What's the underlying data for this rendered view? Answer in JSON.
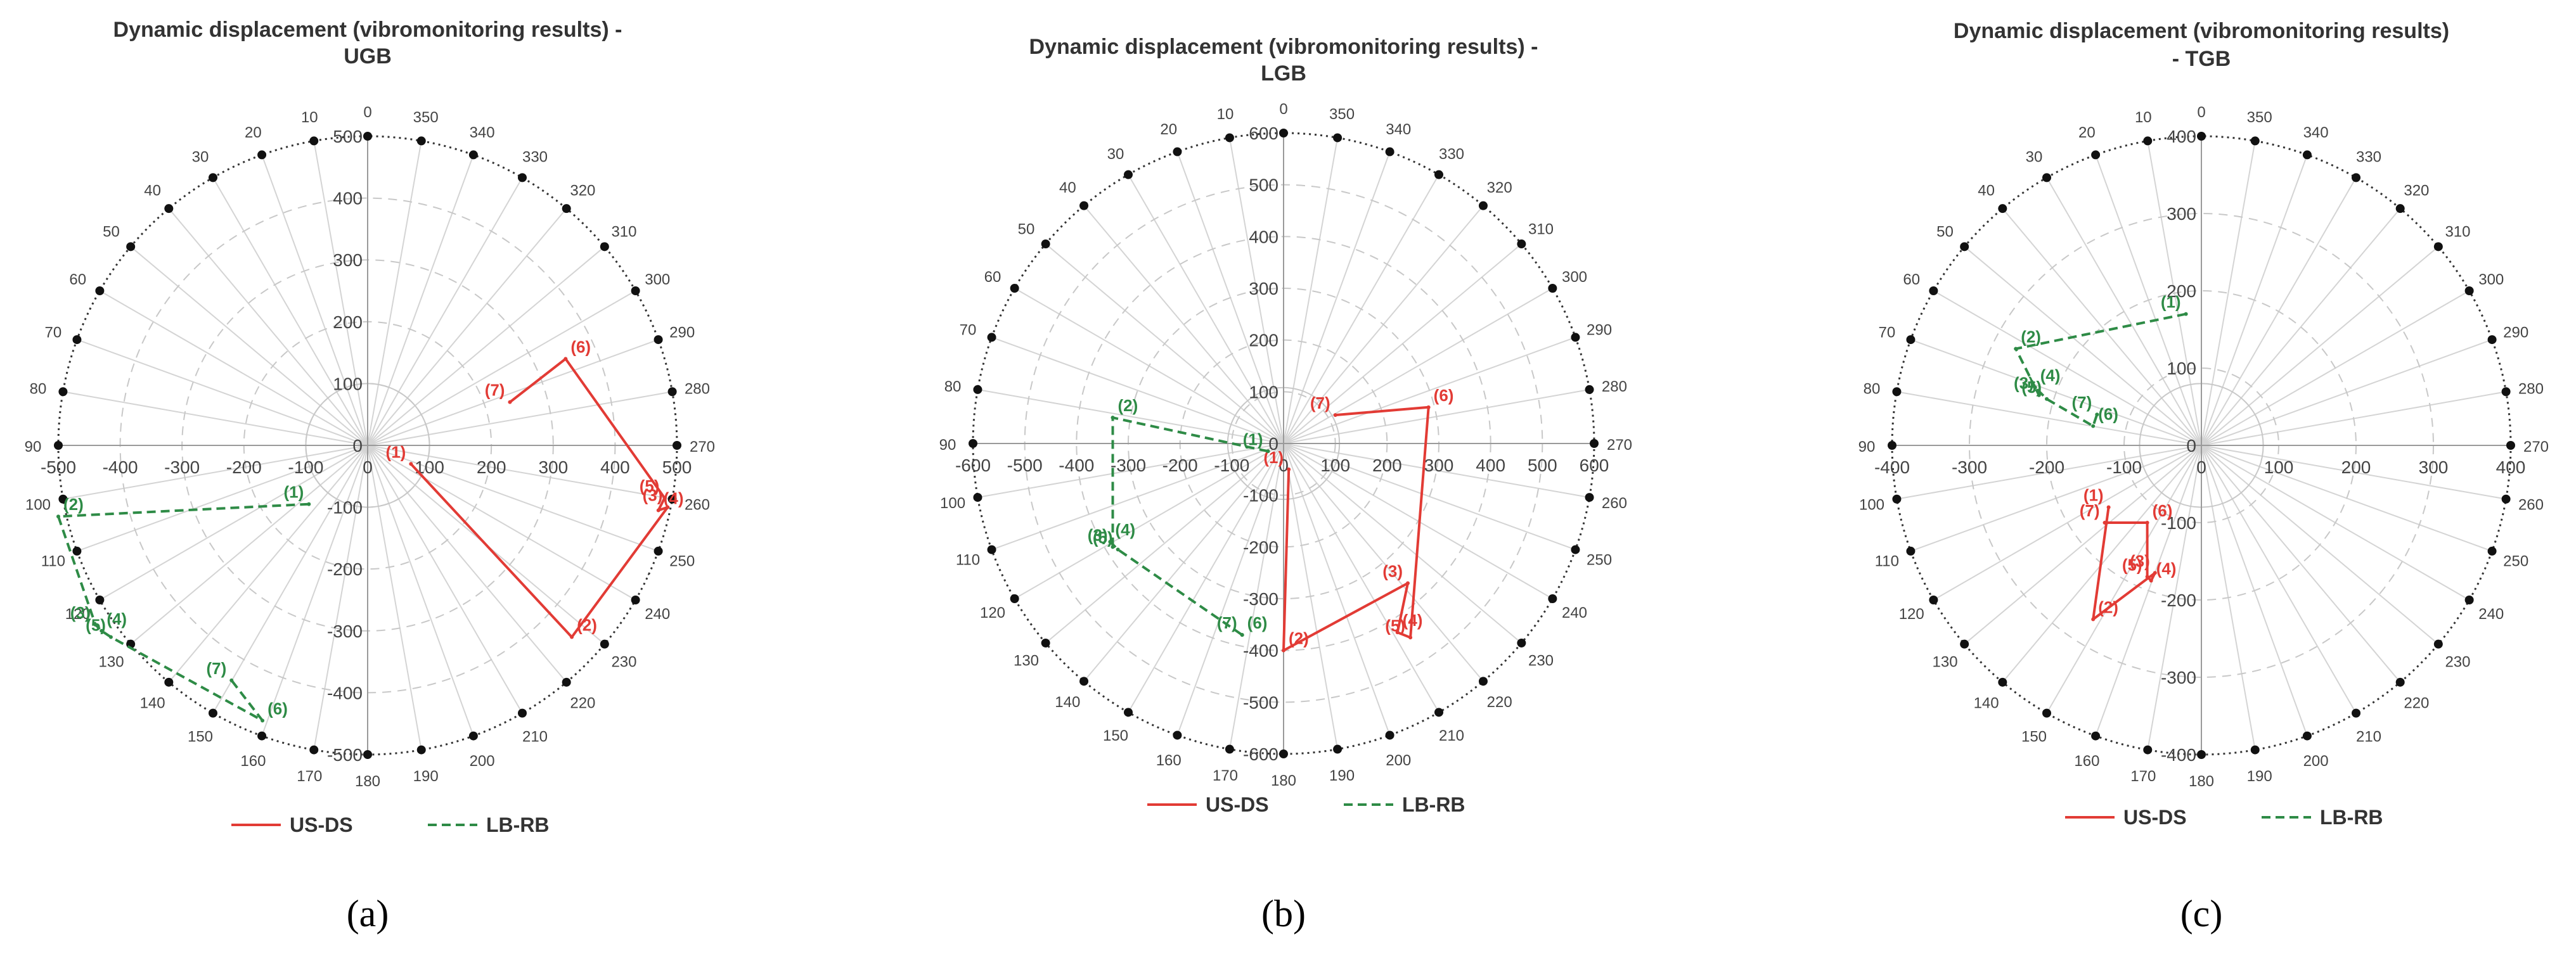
{
  "chart_data": [
    {
      "type": "polar-line",
      "title": "Dynamic displacement (vibromonitoring results) -",
      "subtitle": "UGB",
      "caption": "(a)",
      "radial_ticks": [
        "-500",
        "-400",
        "-300",
        "-200",
        "-100",
        "0",
        "100",
        "200",
        "300",
        "400",
        "500"
      ],
      "radial_max": 500,
      "radial_axis_labels": [
        "500",
        "400",
        "300",
        "200",
        "100",
        "0",
        "-100",
        "-200",
        "-300",
        "-400",
        "-500"
      ],
      "angle_labels": [
        "0",
        "10",
        "20",
        "30",
        "40",
        "50",
        "60",
        "70",
        "80",
        "90",
        "100",
        "110",
        "120",
        "130",
        "140",
        "150",
        "160",
        "170",
        "180",
        "190",
        "200",
        "210",
        "220",
        "230",
        "240",
        "250",
        "260",
        "270",
        "280",
        "290",
        "300",
        "310",
        "320",
        "330",
        "340",
        "350"
      ],
      "series": [
        {
          "name": "US-DS",
          "color": "#e23b35",
          "dashed": false,
          "points": [
            {
              "x": 70,
              "y": -30,
              "label": "(1)"
            },
            {
              "x": 330,
              "y": -310,
              "label": "(2)"
            },
            {
              "x": 485,
              "y": -100,
              "label": "(3)"
            },
            {
              "x": 470,
              "y": -105,
              "label": "(4)"
            },
            {
              "x": 480,
              "y": -85,
              "label": "(5)"
            },
            {
              "x": 320,
              "y": 140,
              "label": "(6)"
            },
            {
              "x": 230,
              "y": 70,
              "label": "(7)"
            }
          ]
        },
        {
          "name": "LB-RB",
          "color": "#2e8b46",
          "dashed": true,
          "points": [
            {
              "x": -95,
              "y": -95,
              "label": "(1)"
            },
            {
              "x": -500,
              "y": -115,
              "label": "(2)"
            },
            {
              "x": -440,
              "y": -290,
              "label": "(3)"
            },
            {
              "x": -430,
              "y": -300,
              "label": "(4)"
            },
            {
              "x": -415,
              "y": -310,
              "label": "(5)"
            },
            {
              "x": -170,
              "y": -445,
              "label": "(6)"
            },
            {
              "x": -220,
              "y": -380,
              "label": "(7)"
            }
          ]
        }
      ]
    },
    {
      "type": "polar-line",
      "title": "Dynamic displacement (vibromonitoring results) -",
      "subtitle": "LGB",
      "caption": "(b)",
      "radial_ticks": [
        "-600",
        "-500",
        "-400",
        "-300",
        "-200",
        "-100",
        "0",
        "100",
        "200",
        "300",
        "400",
        "500",
        "600"
      ],
      "radial_max": 600,
      "radial_axis_labels": [
        "600",
        "500",
        "400",
        "300",
        "200",
        "100",
        "0",
        "-100",
        "-200",
        "-300",
        "-400",
        "-500",
        "-600"
      ],
      "angle_labels": [
        "0",
        "10",
        "20",
        "30",
        "40",
        "50",
        "60",
        "70",
        "80",
        "90",
        "100",
        "110",
        "120",
        "130",
        "140",
        "150",
        "160",
        "170",
        "180",
        "190",
        "200",
        "210",
        "220",
        "230",
        "240",
        "250",
        "260",
        "270",
        "280",
        "290",
        "300",
        "310",
        "320",
        "330",
        "340",
        "350"
      ],
      "series": [
        {
          "name": "US-DS",
          "color": "#e23b35",
          "dashed": false,
          "points": [
            {
              "x": 10,
              "y": -50,
              "label": "(1)"
            },
            {
              "x": 0,
              "y": -400,
              "label": "(2)"
            },
            {
              "x": 240,
              "y": -270,
              "label": "(3)"
            },
            {
              "x": 220,
              "y": -365,
              "label": "(4)"
            },
            {
              "x": 245,
              "y": -375,
              "label": "(5)"
            },
            {
              "x": 280,
              "y": 70,
              "label": "(6)"
            },
            {
              "x": 100,
              "y": 55,
              "label": "(7)"
            }
          ]
        },
        {
          "name": "LB-RB",
          "color": "#2e8b46",
          "dashed": true,
          "points": [
            {
              "x": -30,
              "y": -15,
              "label": "(1)"
            },
            {
              "x": -330,
              "y": 50,
              "label": "(2)"
            },
            {
              "x": -330,
              "y": -200,
              "label": "(3)"
            },
            {
              "x": -335,
              "y": -190,
              "label": "(4)"
            },
            {
              "x": -320,
              "y": -205,
              "label": "(5)"
            },
            {
              "x": -80,
              "y": -370,
              "label": "(6)"
            },
            {
              "x": -80,
              "y": -370,
              "label": "(7)"
            }
          ]
        }
      ]
    },
    {
      "type": "polar-line",
      "title": "Dynamic displacement (vibromonitoring results)",
      "subtitle": "-  TGB",
      "caption": "(c)",
      "radial_ticks": [
        "-400",
        "-300",
        "-200",
        "-100",
        "0",
        "100",
        "200",
        "300",
        "400"
      ],
      "radial_max": 400,
      "radial_axis_labels": [
        "400",
        "300",
        "200",
        "100",
        "0",
        "-100",
        "-200",
        "-300",
        "-400"
      ],
      "angle_labels": [
        "0",
        "10",
        "20",
        "30",
        "40",
        "50",
        "60",
        "70",
        "80",
        "90",
        "100",
        "110",
        "120",
        "130",
        "140",
        "150",
        "160",
        "170",
        "180",
        "190",
        "200",
        "210",
        "220",
        "230",
        "240",
        "250",
        "260",
        "270",
        "280",
        "290",
        "300",
        "310",
        "320",
        "330",
        "340",
        "350"
      ],
      "series": [
        {
          "name": "US-DS",
          "color": "#e23b35",
          "dashed": false,
          "points": [
            {
              "x": -120,
              "y": -80,
              "label": "(1)"
            },
            {
              "x": -140,
              "y": -225,
              "label": "(2)"
            },
            {
              "x": -60,
              "y": -165,
              "label": "(3)"
            },
            {
              "x": -65,
              "y": -175,
              "label": "(4)"
            },
            {
              "x": -70,
              "y": -170,
              "label": "(5)"
            },
            {
              "x": -70,
              "y": -100,
              "label": "(6)"
            },
            {
              "x": -125,
              "y": -100,
              "label": "(7)"
            }
          ]
        },
        {
          "name": "LB-RB",
          "color": "#2e8b46",
          "dashed": true,
          "points": [
            {
              "x": -20,
              "y": 170,
              "label": "(1)"
            },
            {
              "x": -240,
              "y": 125,
              "label": "(2)"
            },
            {
              "x": -210,
              "y": 65,
              "label": "(3)"
            },
            {
              "x": -215,
              "y": 75,
              "label": "(4)"
            },
            {
              "x": -200,
              "y": 60,
              "label": "(5)"
            },
            {
              "x": -140,
              "y": 25,
              "label": "(6)"
            },
            {
              "x": -135,
              "y": 40,
              "label": "(7)"
            }
          ]
        }
      ]
    }
  ]
}
